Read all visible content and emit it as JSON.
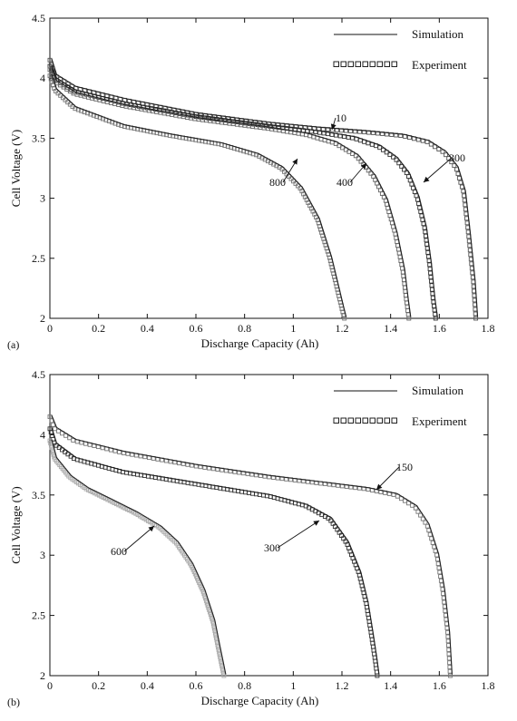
{
  "chart_data": [
    {
      "type": "line",
      "panel_label": "(a)",
      "xlabel": "Discharge Capacity (Ah)",
      "ylabel": "Cell Voltage (V)",
      "xlim": [
        0,
        1.8
      ],
      "ylim": [
        2,
        4.5
      ],
      "xticks": [
        "0",
        "0.2",
        "0.4",
        "0.6",
        "0.8",
        "1",
        "1.2",
        "1.4",
        "1.6",
        "1.8"
      ],
      "yticks": [
        "2",
        "2.5",
        "3",
        "3.5",
        "4",
        "4.5"
      ],
      "grid": false,
      "legend": {
        "placement": "top-right",
        "entries": [
          {
            "label": "Simulation",
            "style": "line"
          },
          {
            "label": "Experiment",
            "style": "square-markers"
          }
        ]
      },
      "series": [
        {
          "name": "10",
          "color": "#222222",
          "marker_color": "#555555",
          "x": [
            0,
            0.02,
            0.1,
            0.3,
            0.6,
            0.9,
            1.1,
            1.3,
            1.45,
            1.55,
            1.62,
            1.67,
            1.7,
            1.72,
            1.74,
            1.75
          ],
          "y": [
            4.15,
            4.02,
            3.92,
            3.82,
            3.7,
            3.62,
            3.58,
            3.55,
            3.52,
            3.47,
            3.38,
            3.25,
            3.05,
            2.7,
            2.3,
            2.0
          ]
        },
        {
          "name": "300",
          "color": "#222222",
          "marker_color": "#333333",
          "x": [
            0,
            0.02,
            0.1,
            0.3,
            0.6,
            0.9,
            1.1,
            1.25,
            1.35,
            1.42,
            1.47,
            1.51,
            1.54,
            1.56,
            1.575,
            1.585
          ],
          "y": [
            4.1,
            3.99,
            3.89,
            3.79,
            3.68,
            3.6,
            3.55,
            3.5,
            3.43,
            3.33,
            3.2,
            3.0,
            2.75,
            2.45,
            2.15,
            2.0
          ]
        },
        {
          "name": "400",
          "color": "#222222",
          "marker_color": "#666666",
          "x": [
            0,
            0.02,
            0.1,
            0.3,
            0.6,
            0.9,
            1.05,
            1.17,
            1.26,
            1.33,
            1.38,
            1.42,
            1.45,
            1.465,
            1.475
          ],
          "y": [
            4.07,
            3.97,
            3.87,
            3.77,
            3.66,
            3.58,
            3.53,
            3.46,
            3.35,
            3.18,
            2.98,
            2.7,
            2.4,
            2.15,
            2.0
          ]
        },
        {
          "name": "800",
          "color": "#222222",
          "marker_color": "#777777",
          "x": [
            0,
            0.02,
            0.1,
            0.3,
            0.5,
            0.7,
            0.85,
            0.95,
            1.03,
            1.1,
            1.15,
            1.18,
            1.2,
            1.21
          ],
          "y": [
            4.02,
            3.9,
            3.75,
            3.6,
            3.52,
            3.45,
            3.36,
            3.25,
            3.08,
            2.82,
            2.5,
            2.25,
            2.08,
            2.0
          ]
        }
      ],
      "annotations": [
        {
          "text": "10",
          "x": 1.17,
          "y": 3.56
        },
        {
          "text": "300",
          "x": 1.53,
          "y": 3.32
        },
        {
          "text": "400",
          "x": 1.27,
          "y": 3.34
        },
        {
          "text": "800",
          "x": 0.99,
          "y": 3.3
        }
      ]
    },
    {
      "type": "line",
      "panel_label": "(b)",
      "xlabel": "Discharge Capacity (Ah)",
      "ylabel": "Cell Voltage (V)",
      "xlim": [
        0,
        1.8
      ],
      "ylim": [
        2,
        4.5
      ],
      "xticks": [
        "0",
        "0.2",
        "0.4",
        "0.6",
        "0.8",
        "1",
        "1.2",
        "1.4",
        "1.6",
        "1.8"
      ],
      "yticks": [
        "2",
        "2.5",
        "3",
        "3.5",
        "4",
        "4.5"
      ],
      "grid": false,
      "legend": {
        "placement": "top-right",
        "entries": [
          {
            "label": "Simulation",
            "style": "line"
          },
          {
            "label": "Experiment",
            "style": "square-markers"
          }
        ]
      },
      "series": [
        {
          "name": "150",
          "color": "#222222",
          "marker_color": "#777777",
          "x": [
            0,
            0.02,
            0.1,
            0.3,
            0.6,
            0.9,
            1.1,
            1.3,
            1.42,
            1.5,
            1.55,
            1.59,
            1.615,
            1.635,
            1.645
          ],
          "y": [
            4.15,
            4.05,
            3.95,
            3.85,
            3.74,
            3.65,
            3.6,
            3.55,
            3.5,
            3.4,
            3.25,
            3.0,
            2.7,
            2.35,
            2.0
          ]
        },
        {
          "name": "300",
          "color": "#222222",
          "marker_color": "#333333",
          "x": [
            0,
            0.02,
            0.1,
            0.3,
            0.6,
            0.9,
            1.05,
            1.15,
            1.22,
            1.27,
            1.3,
            1.32,
            1.335,
            1.345
          ],
          "y": [
            4.05,
            3.92,
            3.8,
            3.69,
            3.59,
            3.49,
            3.41,
            3.3,
            3.1,
            2.85,
            2.6,
            2.35,
            2.15,
            2.0
          ]
        },
        {
          "name": "600",
          "color": "#222222",
          "marker_color": "#aaaaaa",
          "x": [
            0,
            0.02,
            0.08,
            0.15,
            0.25,
            0.35,
            0.45,
            0.52,
            0.58,
            0.63,
            0.67,
            0.69,
            0.705,
            0.715
          ],
          "y": [
            3.95,
            3.8,
            3.65,
            3.55,
            3.45,
            3.35,
            3.23,
            3.1,
            2.92,
            2.7,
            2.45,
            2.25,
            2.1,
            2.0
          ]
        }
      ],
      "annotations": [
        {
          "text": "150",
          "x": 1.46,
          "y": 3.68
        },
        {
          "text": "300",
          "x": 0.98,
          "y": 3.08
        },
        {
          "text": "600",
          "x": 0.3,
          "y": 3.04
        }
      ]
    }
  ]
}
